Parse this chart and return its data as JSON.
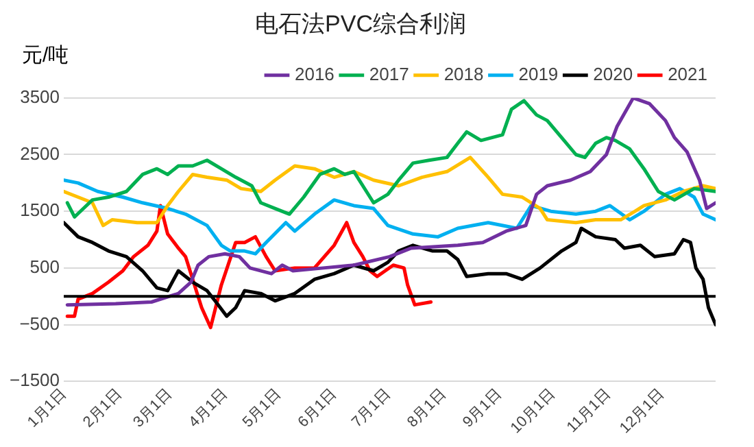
{
  "chart_data": {
    "type": "line",
    "title": "电石法PVC综合利润",
    "ylabel": "元/吨",
    "xlim": [
      "--01-01",
      "--12-31"
    ],
    "xticks": [
      {
        "value": "--01-01",
        "label": "1月1日"
      },
      {
        "value": "--02-01",
        "label": "2月1日"
      },
      {
        "value": "--03-01",
        "label": "3月1日"
      },
      {
        "value": "--04-01",
        "label": "4月1日"
      },
      {
        "value": "--05-01",
        "label": "5月1日"
      },
      {
        "value": "--06-01",
        "label": "6月1日"
      },
      {
        "value": "--07-01",
        "label": "7月1日"
      },
      {
        "value": "--08-01",
        "label": "8月1日"
      },
      {
        "value": "--09-01",
        "label": "9月1日"
      },
      {
        "value": "--10-01",
        "label": "10月1日"
      },
      {
        "value": "--11-01",
        "label": "11月1日"
      },
      {
        "value": "--12-01",
        "label": "12月1日"
      }
    ],
    "ylim": [
      -1500,
      3500
    ],
    "yticks": [
      -1500,
      -500,
      500,
      1500,
      2500,
      3500
    ],
    "grid": "y",
    "legend": "top",
    "marker": "none",
    "line_style": "solid",
    "ref_lines": [
      {
        "axis": "y",
        "value": 0,
        "color": "#000000"
      }
    ],
    "series": [
      {
        "name": "2016",
        "color": "#7030a0",
        "x": [
          "--01-03",
          "--01-30",
          "--02-19",
          "--03-06",
          "--03-13",
          "--03-17",
          "--03-23",
          "--04-01",
          "--04-09",
          "--04-15",
          "--04-27",
          "--05-03",
          "--05-09",
          "--05-26",
          "--06-12",
          "--07-02",
          "--07-14",
          "--08-09",
          "--08-23",
          "--09-05",
          "--09-16",
          "--09-22",
          "--09-28",
          "--10-11",
          "--10-22",
          "--10-31",
          "--11-06",
          "--11-15",
          "--11-24",
          "--12-03",
          "--12-08",
          "--12-15",
          "--12-22",
          "--12-26",
          "--12-31"
        ],
        "values": [
          -150,
          -130,
          -100,
          50,
          250,
          550,
          700,
          750,
          700,
          500,
          400,
          550,
          450,
          500,
          550,
          700,
          850,
          900,
          950,
          1150,
          1250,
          1800,
          1950,
          2050,
          2200,
          2500,
          3000,
          3500,
          3400,
          3100,
          2800,
          2550,
          2050,
          1550,
          1650
        ]
      },
      {
        "name": "2017",
        "color": "#00b050",
        "x": [
          "--01-03",
          "--01-07",
          "--01-12",
          "--01-17",
          "--01-26",
          "--02-05",
          "--02-14",
          "--02-22",
          "--02-28",
          "--03-06",
          "--03-14",
          "--03-22",
          "--03-30",
          "--04-07",
          "--04-16",
          "--04-21",
          "--04-29",
          "--05-07",
          "--05-15",
          "--05-24",
          "--06-01",
          "--06-07",
          "--06-12",
          "--06-21",
          "--06-23",
          "--07-01",
          "--07-07",
          "--07-15",
          "--07-24",
          "--08-03",
          "--08-09",
          "--08-14",
          "--08-22",
          "--09-03",
          "--09-08",
          "--09-15",
          "--09-22",
          "--09-28",
          "--10-06",
          "--10-14",
          "--10-19",
          "--10-25",
          "--10-31",
          "--11-05",
          "--11-13",
          "--11-21",
          "--11-29",
          "--12-08",
          "--12-19",
          "--12-31"
        ],
        "values": [
          1650,
          1400,
          1550,
          1700,
          1750,
          1850,
          2150,
          2250,
          2150,
          2300,
          2300,
          2400,
          2250,
          2100,
          1950,
          1650,
          1550,
          1450,
          1750,
          2150,
          2250,
          2150,
          2200,
          1750,
          1650,
          1800,
          2050,
          2350,
          2400,
          2450,
          2700,
          2900,
          2750,
          2850,
          3300,
          3450,
          3200,
          3100,
          2800,
          2500,
          2450,
          2700,
          2800,
          2750,
          2600,
          2250,
          1850,
          1700,
          1900,
          1850
        ]
      },
      {
        "name": "2018",
        "color": "#ffc000",
        "x": [
          "--01-01",
          "--01-09",
          "--01-17",
          "--01-23",
          "--01-28",
          "--02-11",
          "--02-22",
          "--02-28",
          "--03-06",
          "--03-14",
          "--03-22",
          "--04-02",
          "--04-10",
          "--04-21",
          "--04-29",
          "--05-10",
          "--05-21",
          "--06-01",
          "--06-12",
          "--06-23",
          "--07-07",
          "--07-20",
          "--08-03",
          "--08-16",
          "--08-26",
          "--09-03",
          "--09-14",
          "--09-24",
          "--09-28",
          "--10-14",
          "--10-25",
          "--11-08",
          "--11-16",
          "--11-21",
          "--12-03",
          "--12-13",
          "--12-24",
          "--12-31"
        ],
        "values": [
          1850,
          1750,
          1650,
          1250,
          1350,
          1300,
          1300,
          1600,
          1850,
          2150,
          2100,
          2050,
          1900,
          1850,
          2050,
          2300,
          2250,
          2100,
          2200,
          2050,
          1950,
          2100,
          2200,
          2450,
          2100,
          1800,
          1750,
          1550,
          1350,
          1300,
          1350,
          1350,
          1500,
          1600,
          1700,
          1850,
          1950,
          1900
        ]
      },
      {
        "name": "2019",
        "color": "#00b0f0",
        "x": [
          "--01-01",
          "--01-09",
          "--01-20",
          "--02-03",
          "--02-14",
          "--02-28",
          "--03-10",
          "--03-22",
          "--03-30",
          "--04-04",
          "--04-12",
          "--04-18",
          "--04-24",
          "--05-05",
          "--05-10",
          "--05-21",
          "--06-01",
          "--06-12",
          "--06-23",
          "--07-01",
          "--07-15",
          "--07-29",
          "--08-09",
          "--08-26",
          "--09-11",
          "--09-19",
          "--09-30",
          "--10-14",
          "--10-25",
          "--11-02",
          "--11-13",
          "--11-21",
          "--12-03",
          "--12-11",
          "--12-19",
          "--12-24",
          "--12-31"
        ],
        "values": [
          2050,
          2000,
          1850,
          1750,
          1650,
          1550,
          1450,
          1250,
          900,
          800,
          800,
          750,
          950,
          1300,
          1150,
          1450,
          1700,
          1600,
          1550,
          1250,
          1100,
          1050,
          1200,
          1300,
          1200,
          1600,
          1500,
          1450,
          1500,
          1600,
          1350,
          1500,
          1800,
          1900,
          1750,
          1450,
          1350
        ]
      },
      {
        "name": "2020",
        "color": "#000000",
        "x": [
          "--01-01",
          "--01-09",
          "--01-17",
          "--01-26",
          "--02-05",
          "--02-14",
          "--02-22",
          "--02-28",
          "--03-06",
          "--03-14",
          "--03-22",
          "--03-27",
          "--04-02",
          "--04-07",
          "--04-12",
          "--04-21",
          "--04-29",
          "--05-10",
          "--05-21",
          "--06-01",
          "--06-12",
          "--06-23",
          "--07-01",
          "--07-07",
          "--07-15",
          "--07-26",
          "--08-03",
          "--08-09",
          "--08-14",
          "--08-26",
          "--09-05",
          "--09-14",
          "--09-24",
          "--10-06",
          "--10-14",
          "--10-17",
          "--10-25",
          "--11-05",
          "--11-10",
          "--11-19",
          "--11-27",
          "--12-08",
          "--12-13",
          "--12-17",
          "--12-20",
          "--12-24",
          "--12-27",
          "--12-31"
        ],
        "values": [
          1300,
          1050,
          950,
          800,
          700,
          450,
          150,
          100,
          450,
          250,
          100,
          -100,
          -350,
          -200,
          100,
          50,
          -80,
          50,
          300,
          400,
          550,
          450,
          600,
          800,
          900,
          800,
          800,
          650,
          350,
          400,
          400,
          300,
          500,
          800,
          950,
          1200,
          1050,
          1000,
          850,
          900,
          700,
          750,
          1000,
          950,
          500,
          300,
          -200,
          -500
        ]
      },
      {
        "name": "2021",
        "color": "#ff0000",
        "x": [
          "--01-03",
          "--01-07",
          "--01-09",
          "--01-17",
          "--01-26",
          "--02-03",
          "--02-09",
          "--02-17",
          "--02-22",
          "--02-24",
          "--02-28",
          "--03-06",
          "--03-10",
          "--03-15",
          "--03-19",
          "--03-24",
          "--03-30",
          "--04-07",
          "--04-12",
          "--04-18",
          "--04-24",
          "--04-29",
          "--05-10",
          "--05-21",
          "--06-01",
          "--06-08",
          "--06-12",
          "--06-17",
          "--06-21",
          "--06-25",
          "--07-04",
          "--07-10",
          "--07-12",
          "--07-16",
          "--07-25"
        ],
        "values": [
          -350,
          -350,
          -50,
          50,
          250,
          450,
          700,
          900,
          1150,
          1600,
          1100,
          850,
          700,
          200,
          -200,
          -550,
          200,
          950,
          950,
          1050,
          700,
          450,
          500,
          500,
          900,
          1300,
          950,
          700,
          450,
          350,
          550,
          500,
          200,
          -150,
          -100
        ]
      }
    ]
  }
}
